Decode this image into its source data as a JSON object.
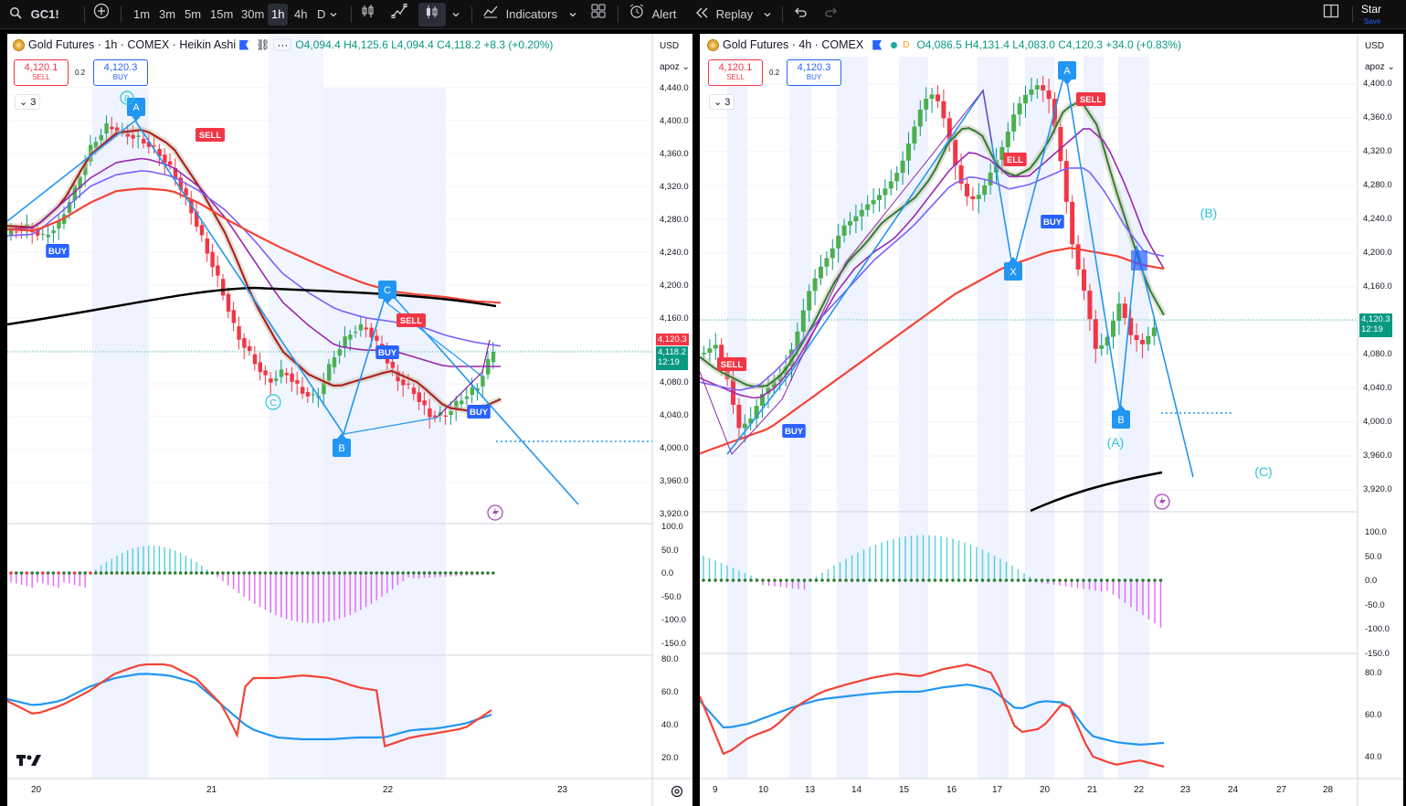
{
  "toolbar": {
    "symbol": "GC1!",
    "timeframes": [
      "1m",
      "3m",
      "5m",
      "15m",
      "30m",
      "1h",
      "4h",
      "D"
    ],
    "active_timeframe": "1h",
    "indicators_label": "Indicators",
    "alert_label": "Alert",
    "replay_label": "Replay",
    "star_label": "Star",
    "save_label": "Save"
  },
  "left": {
    "title": "Gold Futures · 1h · COMEX · Heikin Ashi",
    "ohlc": "O4,094.4 H4,125.6 L4,094.4 C4,118.2 +8.3 (+0.20%)",
    "sell_price": "4,120.1",
    "sell_label": "SELL",
    "buy_price": "4,120.3",
    "buy_label": "BUY",
    "spread": "0.2",
    "indicator_count": "3",
    "currency": "USD",
    "scale_mode": "apoz",
    "price_ticks": [
      "4,440.0",
      "4,400.0",
      "4,360.0",
      "4,320.0",
      "4,280.0",
      "4,240.0",
      "4,200.0",
      "4,160.0",
      "4,080.0",
      "4,040.0",
      "4,000.0",
      "3,960.0",
      "3,920.0"
    ],
    "last_price_tag": "4,120.3",
    "last_close_tag": "4,118.2",
    "countdown": "12:19",
    "osc_ticks": [
      "100.0",
      "50.0",
      "0.0",
      "-50.0",
      "-100.0",
      "-150.0"
    ],
    "rsi_ticks": [
      "80.0",
      "60.0",
      "40.0",
      "20.0"
    ],
    "time_ticks": [
      "20",
      "21",
      "22",
      "23"
    ],
    "wave_labels": {
      "A": "A",
      "B": "B",
      "C": "C",
      "C_circle": "C",
      "B_circle": "B"
    },
    "signals": [
      "SELL",
      "BUY",
      "BUY",
      "SELL",
      "BUY"
    ]
  },
  "right": {
    "title": "Gold Futures · 4h · COMEX",
    "ohlc": "O4,086.5 H4,131.4 L4,083.0 C4,120.3 +34.0 (+0.83%)",
    "sell_price": "4,120.1",
    "sell_label": "SELL",
    "buy_price": "4,120.3",
    "buy_label": "BUY",
    "spread": "0.2",
    "indicator_count": "3",
    "currency": "USD",
    "scale_mode": "apoz",
    "price_ticks": [
      "4,400.0",
      "4,360.0",
      "4,320.0",
      "4,280.0",
      "4,240.0",
      "4,200.0",
      "4,160.0",
      "4,080.0",
      "4,040.0",
      "4,000.0",
      "3,960.0",
      "3,920.0"
    ],
    "last_price_tag": "4,120.3",
    "countdown": "12:19",
    "osc_ticks": [
      "100.0",
      "50.0",
      "0.0",
      "-50.0",
      "-100.0",
      "-150.0"
    ],
    "rsi_ticks": [
      "80.0",
      "60.0",
      "40.0"
    ],
    "time_ticks": [
      "9",
      "10",
      "13",
      "14",
      "15",
      "16",
      "17",
      "20",
      "21",
      "22",
      "23",
      "24",
      "27",
      "28"
    ],
    "wave_labels": {
      "A": "A",
      "X": "X",
      "B": "B",
      "(A)": "(A)",
      "(B)": "(B)",
      "(C)": "(C)"
    },
    "signals": [
      "SELL",
      "ELL",
      "SELL",
      "BUY",
      "BUY"
    ]
  },
  "colors": {
    "up": "#089981",
    "down": "#f23645",
    "accent": "#2962ff",
    "wave": "#2196f3",
    "ema_green": "#2e7d32",
    "ema_dark_red": "#b71c1c",
    "purple": "#9c27b0",
    "violet": "#7b61ff",
    "red_line": "#f44336",
    "black_line": "#000000",
    "cyan": "#26c6da",
    "pink": "#e040fb"
  }
}
